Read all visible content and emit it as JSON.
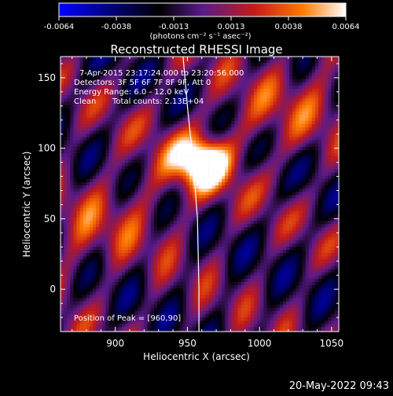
{
  "chart_data": {
    "type": "heatmap",
    "title": "Reconstructed RHESSI Image",
    "xlabel": "Heliocentric X (arcsec)",
    "ylabel": "Heliocentric Y (arcsec)",
    "xlim": [
      862,
      1055
    ],
    "ylim": [
      -30,
      165
    ],
    "x_ticks": [
      900,
      950,
      1000,
      1050
    ],
    "y_ticks": [
      0,
      50,
      100,
      150
    ],
    "colorbar": {
      "ticks": [
        "-0.0064",
        "-0.0038",
        "-0.0013",
        "0.0013",
        "0.0038",
        "0.0064"
      ],
      "range": [
        -0.0064,
        0.0064
      ],
      "unit_label": "(photons cm⁻² s⁻¹ asec⁻²)",
      "colors": [
        "#0000ff",
        "#000000",
        "#5a1a8a",
        "#c21a1a",
        "#ff7a00",
        "#ffffff"
      ]
    },
    "annotations": [
      "7-Apr-2015 23:17:24.000 to 23:20:56.000",
      "Detectors: 3F 5F 6F 7F 8F 9F, Att 0",
      "Energy Range: 6.0 - 12.0 keV",
      "Clean",
      "Total counts: 2.13E+04",
      "Position of Peak = [960,90]"
    ],
    "peak": {
      "x": 960,
      "y": 90
    },
    "limb_points": [
      [
        947,
        165
      ],
      [
        950,
        130
      ],
      [
        954,
        90
      ],
      [
        957,
        50
      ],
      [
        958,
        0
      ],
      [
        958,
        -30
      ]
    ],
    "grid": false
  },
  "timestamp": "20-May-2022 09:43"
}
